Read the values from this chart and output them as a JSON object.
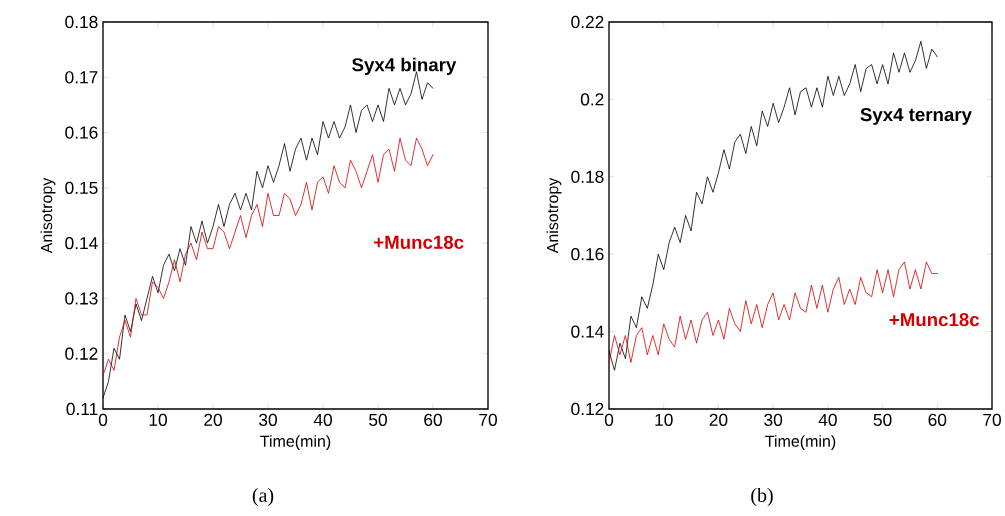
{
  "chart_data": [
    {
      "type": "line",
      "xlabel": "Time(min)",
      "ylabel": "Anisotropy",
      "annotations": [
        "(a)"
      ],
      "xlim": [
        0,
        70
      ],
      "ylim": [
        0.11,
        0.18
      ],
      "xticks": [
        0,
        10,
        20,
        30,
        40,
        50,
        60,
        70
      ],
      "yticks": [
        0.11,
        0.12,
        0.13,
        0.14,
        0.15,
        0.16,
        0.17,
        0.18
      ],
      "x": [
        0,
        1,
        2,
        3,
        4,
        5,
        6,
        7,
        8,
        9,
        10,
        11,
        12,
        13,
        14,
        15,
        16,
        17,
        18,
        19,
        20,
        21,
        22,
        23,
        24,
        25,
        26,
        27,
        28,
        29,
        30,
        31,
        32,
        33,
        34,
        35,
        36,
        37,
        38,
        39,
        40,
        41,
        42,
        43,
        44,
        45,
        46,
        47,
        48,
        49,
        50,
        51,
        52,
        53,
        54,
        55,
        56,
        57,
        58,
        59,
        60
      ],
      "series": [
        {
          "name": "Syx4 binary",
          "color": "#000000",
          "values": [
            0.112,
            0.115,
            0.121,
            0.119,
            0.127,
            0.124,
            0.129,
            0.126,
            0.13,
            0.134,
            0.131,
            0.136,
            0.138,
            0.135,
            0.139,
            0.136,
            0.143,
            0.14,
            0.144,
            0.14,
            0.143,
            0.147,
            0.143,
            0.147,
            0.149,
            0.146,
            0.149,
            0.146,
            0.153,
            0.15,
            0.154,
            0.151,
            0.154,
            0.158,
            0.153,
            0.157,
            0.159,
            0.155,
            0.159,
            0.156,
            0.162,
            0.159,
            0.162,
            0.159,
            0.161,
            0.165,
            0.16,
            0.164,
            0.165,
            0.162,
            0.165,
            0.162,
            0.168,
            0.165,
            0.168,
            0.165,
            0.167,
            0.171,
            0.166,
            0.169,
            0.168
          ]
        },
        {
          "name": "+Munc18c",
          "color": "#d40000",
          "values": [
            0.116,
            0.119,
            0.117,
            0.123,
            0.126,
            0.123,
            0.13,
            0.127,
            0.127,
            0.133,
            0.132,
            0.13,
            0.133,
            0.137,
            0.133,
            0.138,
            0.14,
            0.137,
            0.142,
            0.139,
            0.139,
            0.143,
            0.142,
            0.139,
            0.142,
            0.145,
            0.141,
            0.145,
            0.147,
            0.143,
            0.149,
            0.145,
            0.145,
            0.149,
            0.148,
            0.145,
            0.147,
            0.151,
            0.146,
            0.151,
            0.152,
            0.149,
            0.154,
            0.151,
            0.15,
            0.155,
            0.153,
            0.15,
            0.153,
            0.156,
            0.151,
            0.156,
            0.157,
            0.153,
            0.159,
            0.155,
            0.154,
            0.159,
            0.157,
            0.154,
            0.156
          ]
        }
      ]
    },
    {
      "type": "line",
      "xlabel": "Time(min)",
      "ylabel": "Anisotropy",
      "annotations": [
        "(b)"
      ],
      "xlim": [
        0,
        70
      ],
      "ylim": [
        0.12,
        0.22
      ],
      "xticks": [
        0,
        10,
        20,
        30,
        40,
        50,
        60,
        70
      ],
      "yticks": [
        0.12,
        0.14,
        0.16,
        0.18,
        0.2,
        0.22
      ],
      "x": [
        0,
        1,
        2,
        3,
        4,
        5,
        6,
        7,
        8,
        9,
        10,
        11,
        12,
        13,
        14,
        15,
        16,
        17,
        18,
        19,
        20,
        21,
        22,
        23,
        24,
        25,
        26,
        27,
        28,
        29,
        30,
        31,
        32,
        33,
        34,
        35,
        36,
        37,
        38,
        39,
        40,
        41,
        42,
        43,
        44,
        45,
        46,
        47,
        48,
        49,
        50,
        51,
        52,
        53,
        54,
        55,
        56,
        57,
        58,
        59,
        60
      ],
      "series": [
        {
          "name": "Syx4 ternary",
          "color": "#000000",
          "values": [
            0.135,
            0.13,
            0.137,
            0.133,
            0.144,
            0.141,
            0.149,
            0.146,
            0.152,
            0.16,
            0.156,
            0.163,
            0.167,
            0.163,
            0.17,
            0.166,
            0.176,
            0.173,
            0.18,
            0.176,
            0.181,
            0.187,
            0.182,
            0.189,
            0.191,
            0.186,
            0.193,
            0.188,
            0.197,
            0.193,
            0.199,
            0.194,
            0.198,
            0.203,
            0.196,
            0.202,
            0.203,
            0.198,
            0.203,
            0.198,
            0.206,
            0.201,
            0.206,
            0.201,
            0.204,
            0.209,
            0.202,
            0.208,
            0.209,
            0.204,
            0.209,
            0.204,
            0.212,
            0.207,
            0.212,
            0.207,
            0.21,
            0.215,
            0.208,
            0.213,
            0.211
          ]
        },
        {
          "name": "+Munc18c",
          "color": "#d40000",
          "values": [
            0.132,
            0.139,
            0.134,
            0.139,
            0.132,
            0.139,
            0.141,
            0.134,
            0.139,
            0.134,
            0.142,
            0.138,
            0.136,
            0.144,
            0.138,
            0.143,
            0.137,
            0.143,
            0.145,
            0.139,
            0.143,
            0.138,
            0.146,
            0.142,
            0.14,
            0.148,
            0.142,
            0.147,
            0.141,
            0.147,
            0.15,
            0.143,
            0.147,
            0.143,
            0.15,
            0.146,
            0.145,
            0.152,
            0.146,
            0.152,
            0.145,
            0.151,
            0.154,
            0.147,
            0.151,
            0.147,
            0.154,
            0.15,
            0.149,
            0.156,
            0.15,
            0.156,
            0.149,
            0.156,
            0.158,
            0.151,
            0.156,
            0.151,
            0.158,
            0.155,
            0.155
          ]
        }
      ]
    }
  ]
}
